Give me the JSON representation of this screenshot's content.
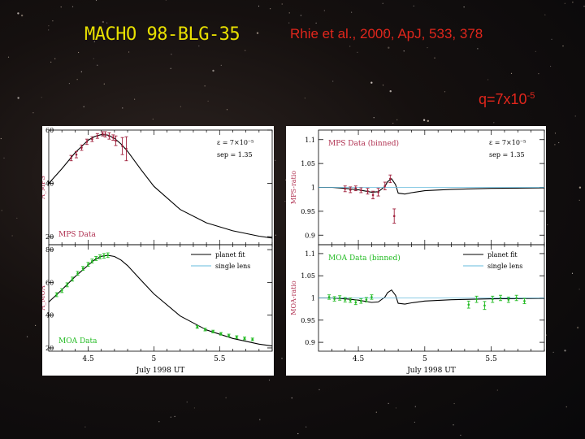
{
  "slide": {
    "title": "MACHO 98-BLG-35",
    "citation": "Rhie et al., 2000, ApJ, 533, 378",
    "q_label": "q=7x10",
    "q_exp": "-5",
    "colors": {
      "title": "#e8e000",
      "citation": "#e0261c",
      "mps_data": "#a0203c",
      "moa_data": "#22bb22",
      "planet_fit": "#000000",
      "single_lens": "#66bbdd"
    }
  },
  "chart_data": [
    {
      "id": "mps-magnification",
      "type": "line",
      "ylabel": "A_MPS",
      "xlim": [
        4.2,
        5.9
      ],
      "ylim": [
        17,
        60
      ],
      "yticks": [
        20,
        40,
        60
      ],
      "panel_label": "MPS Data",
      "annotation": [
        "ε = 7×10⁻⁵",
        "sep = 1.35"
      ],
      "series": [
        {
          "name": "planet fit",
          "x": [
            4.2,
            4.3,
            4.4,
            4.5,
            4.55,
            4.6,
            4.65,
            4.7,
            4.75,
            4.8,
            4.9,
            5.0,
            5.2,
            5.4,
            5.6,
            5.8,
            5.9
          ],
          "y": [
            40.0,
            45.5,
            51.5,
            56.2,
            57.6,
            58.3,
            58.1,
            56.9,
            54.8,
            52.0,
            45.3,
            38.9,
            30.2,
            25.2,
            22.2,
            20.2,
            19.5
          ]
        },
        {
          "name": "MPS data",
          "x": [
            4.37,
            4.41,
            4.45,
            4.49,
            4.53,
            4.57,
            4.61,
            4.63,
            4.66,
            4.69,
            4.71,
            4.76,
            4.79
          ],
          "y": [
            49.5,
            50.8,
            53.4,
            55.6,
            56.6,
            57.8,
            58.6,
            58.4,
            57.8,
            57.2,
            56.0,
            54.0,
            53.0
          ],
          "err": [
            1.0,
            1.2,
            1.0,
            1.0,
            0.9,
            0.9,
            0.8,
            1.0,
            1.2,
            1.0,
            1.8,
            3.2,
            4.5
          ]
        }
      ]
    },
    {
      "id": "moa-magnification",
      "type": "line",
      "ylabel": "A_MOA",
      "xlim": [
        4.2,
        5.9
      ],
      "ylim": [
        18,
        83
      ],
      "yticks": [
        20,
        40,
        60,
        80
      ],
      "xticks": [
        4.5,
        5,
        5.5
      ],
      "xlabel": "July 1998 UT",
      "panel_label": "MOA Data",
      "legend": [
        "planet fit",
        "single lens"
      ],
      "series": [
        {
          "name": "planet fit",
          "x": [
            4.2,
            4.3,
            4.4,
            4.5,
            4.55,
            4.6,
            4.65,
            4.7,
            4.75,
            4.8,
            4.9,
            5.0,
            5.2,
            5.4,
            5.6,
            5.8,
            5.9
          ],
          "y": [
            48.0,
            55.5,
            63.5,
            70.5,
            73.8,
            75.9,
            76.5,
            75.8,
            73.6,
            70.2,
            61.5,
            53.0,
            39.5,
            31.0,
            25.8,
            22.3,
            21.2
          ]
        },
        {
          "name": "MOA data",
          "x": [
            4.26,
            4.3,
            4.34,
            4.38,
            4.42,
            4.46,
            4.5,
            4.53,
            4.56,
            4.59,
            4.62,
            4.65,
            5.33,
            5.39,
            5.45,
            5.51,
            5.57,
            5.63,
            5.69,
            5.75
          ],
          "y": [
            52.5,
            55.0,
            58.5,
            62.0,
            65.5,
            68.5,
            71.0,
            73.0,
            74.6,
            75.6,
            76.2,
            76.6,
            32.8,
            31.2,
            30.0,
            28.6,
            27.6,
            26.6,
            25.8,
            25.2
          ],
          "err": [
            1.2,
            1.2,
            1.2,
            1.2,
            1.2,
            1.2,
            1.2,
            1.2,
            1.2,
            1.2,
            1.4,
            1.4,
            0.8,
            0.8,
            0.8,
            0.8,
            0.8,
            0.8,
            0.8,
            0.8
          ]
        }
      ]
    },
    {
      "id": "mps-ratio",
      "type": "line",
      "ylabel": "MPS-ratio",
      "xlim": [
        4.2,
        5.9
      ],
      "ylim": [
        0.88,
        1.12
      ],
      "yticks": [
        0.9,
        0.95,
        1,
        1.05,
        1.1
      ],
      "panel_label": "MPS Data (binned)",
      "annotation": [
        "ε = 7×10⁻⁵",
        "sep = 1.35"
      ],
      "series": [
        {
          "name": "planet fit",
          "x": [
            4.2,
            4.3,
            4.4,
            4.5,
            4.6,
            4.65,
            4.7,
            4.72,
            4.75,
            4.78,
            4.8,
            4.85,
            4.9,
            5.0,
            5.2,
            5.5,
            5.9
          ],
          "y": [
            1.0,
            1.0,
            0.998,
            0.995,
            0.99,
            0.991,
            1.002,
            1.012,
            1.018,
            1.006,
            0.988,
            0.986,
            0.989,
            0.993,
            0.996,
            0.998,
            0.999
          ]
        },
        {
          "name": "single lens",
          "x": [
            4.2,
            5.9
          ],
          "y": [
            1.0,
            1.0
          ]
        },
        {
          "name": "MPS data",
          "x": [
            4.4,
            4.44,
            4.48,
            4.52,
            4.57,
            4.61,
            4.65,
            4.7,
            4.74,
            4.77
          ],
          "y": [
            0.997,
            0.995,
            0.998,
            0.994,
            0.992,
            0.984,
            0.99,
            1.003,
            1.018,
            0.94
          ],
          "err": [
            0.006,
            0.006,
            0.005,
            0.005,
            0.006,
            0.008,
            0.008,
            0.008,
            0.008,
            0.015
          ]
        }
      ]
    },
    {
      "id": "moa-ratio",
      "type": "line",
      "ylabel": "MOA-ratio",
      "xlim": [
        4.2,
        5.9
      ],
      "ylim": [
        0.88,
        1.12
      ],
      "yticks": [
        0.9,
        0.95,
        1,
        1.05,
        1.1
      ],
      "xticks": [
        4.5,
        5,
        5.5
      ],
      "xlabel": "July 1998 UT",
      "panel_label": "MOA Data (binned)",
      "legend": [
        "planet fit",
        "single lens"
      ],
      "series": [
        {
          "name": "planet fit",
          "x": [
            4.2,
            4.3,
            4.4,
            4.5,
            4.6,
            4.65,
            4.7,
            4.72,
            4.75,
            4.78,
            4.8,
            4.85,
            4.9,
            5.0,
            5.2,
            5.5,
            5.9
          ],
          "y": [
            1.0,
            1.0,
            0.998,
            0.995,
            0.99,
            0.991,
            1.002,
            1.012,
            1.018,
            1.006,
            0.988,
            0.986,
            0.989,
            0.993,
            0.996,
            0.998,
            0.999
          ]
        },
        {
          "name": "single lens",
          "x": [
            4.2,
            5.9
          ],
          "y": [
            1.0,
            1.0
          ]
        },
        {
          "name": "MOA data",
          "x": [
            4.28,
            4.32,
            4.36,
            4.4,
            4.44,
            4.48,
            4.52,
            4.56,
            4.6,
            5.33,
            5.39,
            5.45,
            5.51,
            5.57,
            5.63,
            5.69,
            5.75
          ],
          "y": [
            1.002,
            0.998,
            1.0,
            0.996,
            0.995,
            0.99,
            0.993,
            0.996,
            1.002,
            0.985,
            0.997,
            0.983,
            0.997,
            1.0,
            0.996,
            1.0,
            0.993
          ],
          "err": [
            0.005,
            0.005,
            0.005,
            0.005,
            0.005,
            0.005,
            0.005,
            0.005,
            0.005,
            0.008,
            0.007,
            0.009,
            0.007,
            0.006,
            0.006,
            0.006,
            0.006
          ]
        }
      ]
    }
  ]
}
